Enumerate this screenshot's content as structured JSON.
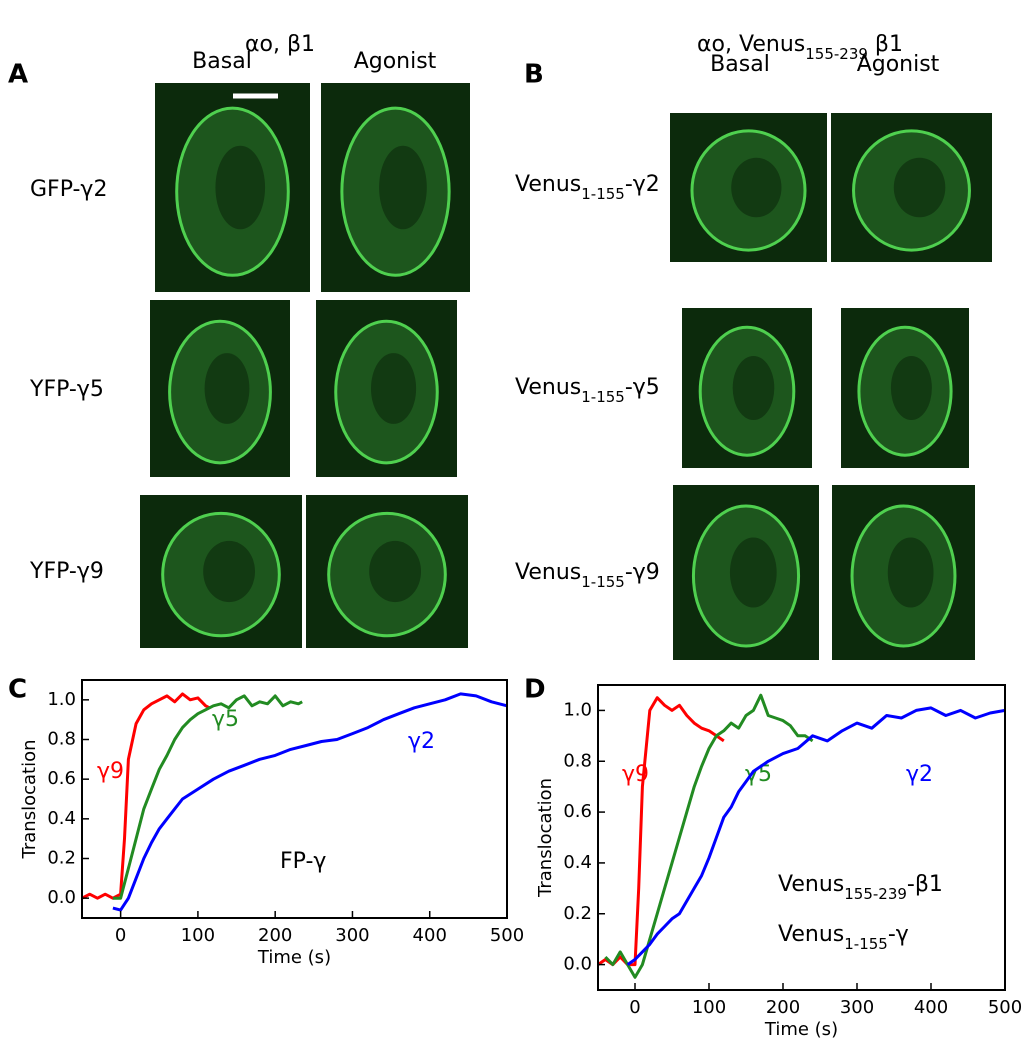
{
  "panel_a": {
    "letter": "A",
    "header": {
      "main": "αo, β1"
    },
    "columns": [
      "Basal",
      "Agonist"
    ],
    "rows": [
      {
        "main": "GFP-γ2"
      },
      {
        "main": "YFP-γ5"
      },
      {
        "main": "YFP-γ9"
      }
    ]
  },
  "panel_b": {
    "letter": "B",
    "header": {
      "main": "αo, Venus",
      "sub": "155-239",
      "tail": " β1"
    },
    "columns": [
      "Basal",
      "Agonist"
    ],
    "rows": [
      {
        "main": "Venus",
        "sub": "1-155",
        "tail": "-γ2"
      },
      {
        "main": "Venus",
        "sub": "1-155",
        "tail": "-γ5"
      },
      {
        "main": "Venus",
        "sub": "1-155",
        "tail": "-γ9"
      }
    ]
  },
  "chart_data": [
    {
      "type": "line",
      "letter": "C",
      "xlabel": "Time (s)",
      "ylabel": "Translocation",
      "xlim": [
        -50,
        500
      ],
      "ylim": [
        -0.1,
        1.1
      ],
      "xticks": [
        0,
        100,
        200,
        300,
        400,
        500
      ],
      "yticks": [
        {
          "value": 0,
          "label": "0.0"
        },
        {
          "value": 0.2,
          "label": "0.2"
        },
        {
          "value": 0.4,
          "label": "0.4"
        },
        {
          "value": 0.6,
          "label": "0.6"
        },
        {
          "value": 0.8,
          "label": "0.8"
        },
        {
          "value": 1,
          "label": "1.0"
        }
      ],
      "annotation": [
        {
          "main": "FP-γ"
        }
      ],
      "series": [
        {
          "name": "γ9",
          "color": "#ff0000",
          "x": [
            -50,
            -40,
            -30,
            -20,
            -10,
            0,
            5,
            10,
            20,
            30,
            40,
            50,
            60,
            70,
            80,
            90,
            100,
            110,
            115
          ],
          "values": [
            0.0,
            0.02,
            0.0,
            0.02,
            0.0,
            0.02,
            0.3,
            0.7,
            0.88,
            0.95,
            0.98,
            1.0,
            1.02,
            0.99,
            1.03,
            1.0,
            1.01,
            0.97,
            0.96
          ]
        },
        {
          "name": "γ5",
          "color": "#228b22",
          "x": [
            -10,
            0,
            10,
            20,
            30,
            40,
            50,
            60,
            70,
            80,
            90,
            100,
            110,
            120,
            130,
            140,
            150,
            160,
            170,
            180,
            190,
            200,
            210,
            220,
            230,
            235
          ],
          "values": [
            0.0,
            0.0,
            0.15,
            0.3,
            0.45,
            0.55,
            0.65,
            0.72,
            0.8,
            0.86,
            0.9,
            0.93,
            0.95,
            0.97,
            0.98,
            0.96,
            1.0,
            1.02,
            0.97,
            0.99,
            0.98,
            1.02,
            0.97,
            0.99,
            0.98,
            0.99
          ]
        },
        {
          "name": "γ2",
          "color": "#0000ff",
          "x": [
            -10,
            0,
            10,
            20,
            30,
            40,
            50,
            60,
            70,
            80,
            100,
            120,
            140,
            160,
            180,
            200,
            220,
            240,
            260,
            280,
            300,
            320,
            340,
            360,
            380,
            400,
            420,
            440,
            460,
            480,
            500
          ],
          "values": [
            -0.05,
            -0.06,
            0.0,
            0.1,
            0.2,
            0.28,
            0.35,
            0.4,
            0.45,
            0.5,
            0.55,
            0.6,
            0.64,
            0.67,
            0.7,
            0.72,
            0.75,
            0.77,
            0.79,
            0.8,
            0.83,
            0.86,
            0.9,
            0.93,
            0.96,
            0.98,
            1.0,
            1.03,
            1.02,
            0.99,
            0.97
          ]
        }
      ]
    },
    {
      "type": "line",
      "letter": "D",
      "xlabel": "Time (s)",
      "ylabel": "Translocation",
      "xlim": [
        -50,
        500
      ],
      "ylim": [
        -0.1,
        1.1
      ],
      "xticks": [
        0,
        100,
        200,
        300,
        400,
        500
      ],
      "yticks": [
        {
          "value": 0,
          "label": "0.0"
        },
        {
          "value": 0.2,
          "label": "0.2"
        },
        {
          "value": 0.4,
          "label": "0.4"
        },
        {
          "value": 0.6,
          "label": "0.6"
        },
        {
          "value": 0.8,
          "label": "0.8"
        },
        {
          "value": 1,
          "label": "1.0"
        }
      ],
      "annotation": [
        {
          "main": "Venus",
          "sub": "155-239",
          "tail": "-β1"
        },
        {
          "main": "Venus",
          "sub": "1-155",
          "tail": "-γ"
        }
      ],
      "series": [
        {
          "name": "γ9",
          "color": "#ff0000",
          "x": [
            -50,
            -40,
            -30,
            -20,
            -10,
            0,
            5,
            10,
            20,
            30,
            40,
            50,
            60,
            70,
            80,
            90,
            100,
            110,
            120
          ],
          "values": [
            0.0,
            0.02,
            0.0,
            0.03,
            0.0,
            0.0,
            0.3,
            0.7,
            1.0,
            1.05,
            1.02,
            1.0,
            1.02,
            0.98,
            0.95,
            0.93,
            0.92,
            0.9,
            0.88
          ]
        },
        {
          "name": "γ5",
          "color": "#228b22",
          "x": [
            -40,
            -30,
            -20,
            -10,
            0,
            10,
            20,
            30,
            40,
            50,
            60,
            70,
            80,
            90,
            100,
            110,
            120,
            130,
            140,
            150,
            160,
            170,
            180,
            190,
            200,
            210,
            220,
            230,
            240
          ],
          "values": [
            0.03,
            0.0,
            0.05,
            0.0,
            -0.05,
            0.0,
            0.1,
            0.2,
            0.3,
            0.4,
            0.5,
            0.6,
            0.7,
            0.78,
            0.85,
            0.9,
            0.92,
            0.95,
            0.93,
            0.98,
            1.0,
            1.06,
            0.98,
            0.97,
            0.96,
            0.94,
            0.9,
            0.9,
            0.88
          ]
        },
        {
          "name": "γ2",
          "color": "#0000ff",
          "x": [
            -10,
            0,
            10,
            20,
            30,
            40,
            50,
            60,
            70,
            80,
            90,
            100,
            110,
            120,
            130,
            140,
            150,
            160,
            180,
            200,
            220,
            240,
            260,
            280,
            300,
            320,
            340,
            360,
            380,
            400,
            420,
            440,
            460,
            480,
            500
          ],
          "values": [
            0.0,
            0.02,
            0.05,
            0.08,
            0.12,
            0.15,
            0.18,
            0.2,
            0.25,
            0.3,
            0.35,
            0.42,
            0.5,
            0.58,
            0.62,
            0.68,
            0.72,
            0.76,
            0.8,
            0.83,
            0.85,
            0.9,
            0.88,
            0.92,
            0.95,
            0.93,
            0.98,
            0.97,
            1.0,
            1.01,
            0.98,
            1.0,
            0.97,
            0.99,
            1.0
          ]
        }
      ]
    }
  ]
}
